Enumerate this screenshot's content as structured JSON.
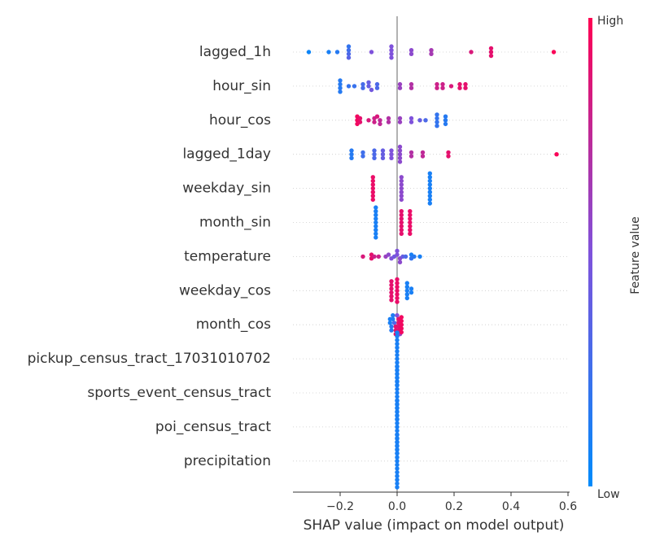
{
  "chart_data": {
    "type": "scatter",
    "xlabel": "SHAP value (impact on model output)",
    "x_ticks": [
      "−0.2",
      "0.0",
      "0.2",
      "0.4",
      "0.6"
    ],
    "x_tick_values": [
      -0.2,
      0.0,
      0.2,
      0.4,
      0.6
    ],
    "xlim": [
      -0.35,
      0.6
    ],
    "colorbar": {
      "label": "Feature value",
      "high": "High",
      "low": "Low",
      "low_color": "#008bfb",
      "high_color": "#ff0052"
    },
    "features": [
      {
        "name": "lagged_1h",
        "points": [
          [
            -0.31,
            0.05
          ],
          [
            -0.24,
            0.1
          ],
          [
            -0.21,
            0.15
          ],
          [
            -0.17,
            0.2
          ],
          [
            -0.17,
            0.25
          ],
          [
            -0.17,
            0.3
          ],
          [
            -0.17,
            0.35
          ],
          [
            -0.09,
            0.5
          ],
          [
            -0.02,
            0.5
          ],
          [
            -0.02,
            0.5
          ],
          [
            -0.02,
            0.5
          ],
          [
            -0.02,
            0.5
          ],
          [
            0.05,
            0.55
          ],
          [
            0.05,
            0.55
          ],
          [
            0.12,
            0.65
          ],
          [
            0.12,
            0.65
          ],
          [
            0.26,
            0.85
          ],
          [
            0.33,
            0.9
          ],
          [
            0.33,
            0.9
          ],
          [
            0.33,
            0.9
          ],
          [
            0.55,
            0.98
          ]
        ]
      },
      {
        "name": "hour_sin",
        "points": [
          [
            -0.2,
            0.15
          ],
          [
            -0.2,
            0.15
          ],
          [
            -0.2,
            0.15
          ],
          [
            -0.2,
            0.15
          ],
          [
            -0.17,
            0.2
          ],
          [
            -0.15,
            0.22
          ],
          [
            -0.12,
            0.28
          ],
          [
            -0.12,
            0.28
          ],
          [
            -0.1,
            0.4
          ],
          [
            -0.1,
            0.4
          ],
          [
            -0.09,
            0.45
          ],
          [
            -0.07,
            0.3
          ],
          [
            -0.07,
            0.3
          ],
          [
            0.01,
            0.6
          ],
          [
            0.01,
            0.6
          ],
          [
            0.05,
            0.7
          ],
          [
            0.05,
            0.7
          ],
          [
            0.14,
            0.8
          ],
          [
            0.14,
            0.8
          ],
          [
            0.16,
            0.8
          ],
          [
            0.16,
            0.8
          ],
          [
            0.19,
            0.85
          ],
          [
            0.22,
            0.9
          ],
          [
            0.22,
            0.9
          ],
          [
            0.24,
            0.9
          ],
          [
            0.24,
            0.9
          ]
        ]
      },
      {
        "name": "hour_cos",
        "points": [
          [
            -0.14,
            0.95
          ],
          [
            -0.14,
            0.95
          ],
          [
            -0.14,
            0.95
          ],
          [
            -0.13,
            0.9
          ],
          [
            -0.13,
            0.9
          ],
          [
            -0.1,
            0.85
          ],
          [
            -0.08,
            0.8
          ],
          [
            -0.08,
            0.8
          ],
          [
            -0.07,
            0.85
          ],
          [
            -0.06,
            0.75
          ],
          [
            -0.06,
            0.75
          ],
          [
            -0.03,
            0.7
          ],
          [
            -0.03,
            0.7
          ],
          [
            0.01,
            0.6
          ],
          [
            0.01,
            0.6
          ],
          [
            0.05,
            0.5
          ],
          [
            0.05,
            0.5
          ],
          [
            0.08,
            0.4
          ],
          [
            0.1,
            0.3
          ],
          [
            0.14,
            0.2
          ],
          [
            0.14,
            0.2
          ],
          [
            0.14,
            0.2
          ],
          [
            0.14,
            0.2
          ],
          [
            0.17,
            0.15
          ],
          [
            0.17,
            0.15
          ],
          [
            0.17,
            0.15
          ]
        ]
      },
      {
        "name": "lagged_1day",
        "points": [
          [
            -0.16,
            0.15
          ],
          [
            -0.16,
            0.15
          ],
          [
            -0.16,
            0.15
          ],
          [
            -0.12,
            0.25
          ],
          [
            -0.12,
            0.25
          ],
          [
            -0.08,
            0.3
          ],
          [
            -0.08,
            0.3
          ],
          [
            -0.08,
            0.3
          ],
          [
            -0.05,
            0.4
          ],
          [
            -0.05,
            0.4
          ],
          [
            -0.05,
            0.4
          ],
          [
            -0.02,
            0.5
          ],
          [
            -0.02,
            0.5
          ],
          [
            -0.02,
            0.5
          ],
          [
            0.01,
            0.55
          ],
          [
            0.01,
            0.55
          ],
          [
            0.01,
            0.55
          ],
          [
            0.01,
            0.55
          ],
          [
            0.01,
            0.55
          ],
          [
            0.05,
            0.7
          ],
          [
            0.05,
            0.7
          ],
          [
            0.09,
            0.75
          ],
          [
            0.09,
            0.75
          ],
          [
            0.18,
            0.9
          ],
          [
            0.18,
            0.9
          ],
          [
            0.56,
            0.98
          ]
        ]
      },
      {
        "name": "weekday_sin",
        "points": [
          [
            -0.085,
            0.92
          ],
          [
            -0.085,
            0.92
          ],
          [
            -0.085,
            0.92
          ],
          [
            -0.085,
            0.92
          ],
          [
            -0.085,
            0.92
          ],
          [
            -0.085,
            0.92
          ],
          [
            -0.085,
            0.92
          ],
          [
            0.015,
            0.55
          ],
          [
            0.015,
            0.55
          ],
          [
            0.015,
            0.55
          ],
          [
            0.015,
            0.55
          ],
          [
            0.015,
            0.55
          ],
          [
            0.015,
            0.55
          ],
          [
            0.015,
            0.55
          ],
          [
            0.115,
            0.1
          ],
          [
            0.115,
            0.1
          ],
          [
            0.115,
            0.1
          ],
          [
            0.115,
            0.1
          ],
          [
            0.115,
            0.1
          ],
          [
            0.115,
            0.1
          ],
          [
            0.115,
            0.1
          ],
          [
            0.115,
            0.1
          ],
          [
            0.115,
            0.1
          ]
        ]
      },
      {
        "name": "month_sin",
        "points": [
          [
            -0.075,
            0.1
          ],
          [
            -0.075,
            0.1
          ],
          [
            -0.075,
            0.1
          ],
          [
            -0.075,
            0.1
          ],
          [
            -0.075,
            0.1
          ],
          [
            -0.075,
            0.1
          ],
          [
            -0.075,
            0.1
          ],
          [
            -0.075,
            0.1
          ],
          [
            -0.075,
            0.1
          ],
          [
            0.015,
            0.9
          ],
          [
            0.015,
            0.9
          ],
          [
            0.015,
            0.9
          ],
          [
            0.015,
            0.9
          ],
          [
            0.015,
            0.9
          ],
          [
            0.015,
            0.9
          ],
          [
            0.015,
            0.9
          ],
          [
            0.045,
            0.92
          ],
          [
            0.045,
            0.92
          ],
          [
            0.045,
            0.92
          ],
          [
            0.045,
            0.92
          ],
          [
            0.045,
            0.92
          ],
          [
            0.045,
            0.92
          ],
          [
            0.045,
            0.92
          ]
        ]
      },
      {
        "name": "temperature",
        "points": [
          [
            -0.12,
            0.85
          ],
          [
            -0.09,
            0.9
          ],
          [
            -0.09,
            0.9
          ],
          [
            -0.08,
            0.8
          ],
          [
            -0.065,
            0.8
          ],
          [
            -0.04,
            0.6
          ],
          [
            -0.03,
            0.55
          ],
          [
            -0.02,
            0.5
          ],
          [
            -0.01,
            0.45
          ],
          [
            0.0,
            0.5
          ],
          [
            0.0,
            0.5
          ],
          [
            0.01,
            0.55
          ],
          [
            0.01,
            0.55
          ],
          [
            0.02,
            0.4
          ],
          [
            0.03,
            0.3
          ],
          [
            0.05,
            0.1
          ],
          [
            0.05,
            0.2
          ],
          [
            0.06,
            0.15
          ],
          [
            0.08,
            0.1
          ]
        ]
      },
      {
        "name": "weekday_cos",
        "points": [
          [
            -0.02,
            0.9
          ],
          [
            -0.02,
            0.9
          ],
          [
            -0.02,
            0.9
          ],
          [
            -0.02,
            0.9
          ],
          [
            -0.02,
            0.9
          ],
          [
            -0.02,
            0.9
          ],
          [
            0.0,
            0.92
          ],
          [
            0.0,
            0.92
          ],
          [
            0.0,
            0.92
          ],
          [
            0.0,
            0.92
          ],
          [
            0.0,
            0.92
          ],
          [
            0.0,
            0.92
          ],
          [
            0.0,
            0.92
          ],
          [
            0.035,
            0.1
          ],
          [
            0.035,
            0.1
          ],
          [
            0.035,
            0.1
          ],
          [
            0.035,
            0.1
          ],
          [
            0.035,
            0.1
          ],
          [
            0.05,
            0.1
          ],
          [
            0.05,
            0.1
          ]
        ]
      },
      {
        "name": "month_cos",
        "points": [
          [
            -0.025,
            0.1
          ],
          [
            -0.025,
            0.1
          ],
          [
            -0.02,
            0.15
          ],
          [
            -0.02,
            0.15
          ],
          [
            -0.015,
            0.12
          ],
          [
            -0.015,
            0.12
          ],
          [
            -0.01,
            0.3
          ],
          [
            -0.005,
            0.9
          ],
          [
            -0.005,
            0.9
          ],
          [
            -0.005,
            0.9
          ],
          [
            0.0,
            0.5
          ],
          [
            0.005,
            0.9
          ],
          [
            0.005,
            0.9
          ],
          [
            0.005,
            0.9
          ],
          [
            0.005,
            0.9
          ],
          [
            0.01,
            0.6
          ],
          [
            0.015,
            0.95
          ],
          [
            0.015,
            0.95
          ],
          [
            0.015,
            0.95
          ],
          [
            0.015,
            0.95
          ],
          [
            0.015,
            0.95
          ]
        ]
      },
      {
        "name": "pickup_census_tract_17031010702",
        "points": [
          [
            0.0,
            0.1
          ],
          [
            0.0,
            0.1
          ],
          [
            0.0,
            0.1
          ],
          [
            0.0,
            0.1
          ],
          [
            0.0,
            0.1
          ],
          [
            0.0,
            0.1
          ],
          [
            0.0,
            0.1
          ],
          [
            0.0,
            0.1
          ],
          [
            0.0,
            0.1
          ],
          [
            0.0,
            0.1
          ],
          [
            0.0,
            0.1
          ],
          [
            0.0,
            0.1
          ],
          [
            0.0,
            0.1
          ],
          [
            0.0,
            0.1
          ],
          [
            0.0,
            0.1
          ]
        ]
      },
      {
        "name": "sports_event_census_tract",
        "points": [
          [
            0.0,
            0.1
          ],
          [
            0.0,
            0.1
          ],
          [
            0.0,
            0.1
          ],
          [
            0.0,
            0.1
          ],
          [
            0.0,
            0.1
          ],
          [
            0.0,
            0.1
          ],
          [
            0.0,
            0.1
          ],
          [
            0.0,
            0.1
          ],
          [
            0.0,
            0.1
          ],
          [
            0.0,
            0.1
          ],
          [
            0.0,
            0.1
          ],
          [
            0.0,
            0.1
          ],
          [
            0.0,
            0.1
          ],
          [
            0.0,
            0.1
          ],
          [
            0.0,
            0.1
          ]
        ]
      },
      {
        "name": "poi_census_tract",
        "points": [
          [
            0.0,
            0.1
          ],
          [
            0.0,
            0.1
          ],
          [
            0.0,
            0.1
          ],
          [
            0.0,
            0.1
          ],
          [
            0.0,
            0.1
          ],
          [
            0.0,
            0.1
          ],
          [
            0.0,
            0.1
          ],
          [
            0.0,
            0.1
          ],
          [
            0.0,
            0.1
          ],
          [
            0.0,
            0.1
          ],
          [
            0.0,
            0.1
          ],
          [
            0.0,
            0.1
          ],
          [
            0.0,
            0.1
          ],
          [
            0.0,
            0.1
          ],
          [
            0.0,
            0.1
          ]
        ]
      },
      {
        "name": "precipitation",
        "points": [
          [
            0.0,
            0.1
          ],
          [
            0.0,
            0.1
          ],
          [
            0.0,
            0.1
          ],
          [
            0.0,
            0.1
          ],
          [
            0.0,
            0.1
          ],
          [
            0.0,
            0.1
          ],
          [
            0.0,
            0.1
          ],
          [
            0.0,
            0.1
          ],
          [
            0.0,
            0.1
          ],
          [
            0.0,
            0.1
          ],
          [
            0.0,
            0.1
          ],
          [
            0.0,
            0.1
          ],
          [
            0.0,
            0.1
          ],
          [
            0.0,
            0.1
          ],
          [
            0.0,
            0.1
          ]
        ]
      }
    ]
  }
}
